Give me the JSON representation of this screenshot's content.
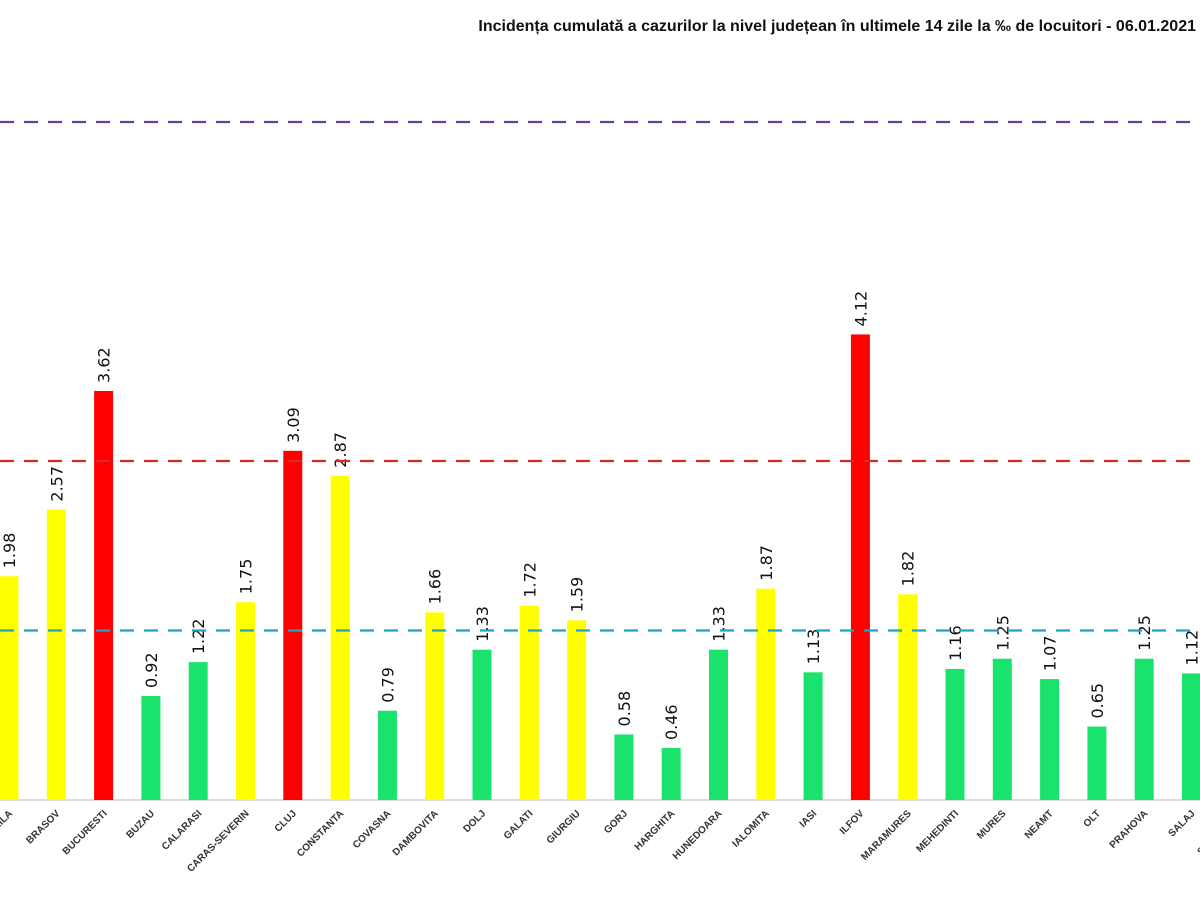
{
  "chart_data": {
    "type": "bar",
    "title": "Incidența cumulată a cazurilor la nivel județean în ultimele 14 zile la ‰ de locuitori - 06.01.2021",
    "xlabel": "",
    "ylabel": "",
    "ylim": [
      0,
      6.2
    ],
    "grid": false,
    "categories": [
      "BRAILA",
      "BRASOV",
      "BUCURESTI",
      "BUZAU",
      "CALARASI",
      "CARAS-SEVERIN",
      "CLUJ",
      "CONSTANTA",
      "COVASNA",
      "DAMBOVITA",
      "DOLJ",
      "GALATI",
      "GIURGIU",
      "GORJ",
      "HARGHITA",
      "HUNEDOARA",
      "IALOMITA",
      "IASI",
      "ILFOV",
      "MARAMURES",
      "MEHEDINTI",
      "MURES",
      "NEAMT",
      "OLT",
      "PRAHOVA",
      "SALAJ",
      "SATU MARE"
    ],
    "values": [
      1.98,
      2.57,
      3.62,
      0.92,
      1.22,
      1.75,
      3.09,
      2.87,
      0.79,
      1.66,
      1.33,
      1.72,
      1.59,
      0.58,
      0.46,
      1.33,
      1.87,
      1.13,
      4.12,
      1.82,
      1.16,
      1.25,
      1.07,
      0.65,
      1.25,
      1.12,
      null
    ],
    "thresholds": [
      {
        "value": 1.5,
        "color": "#1aa7c4"
      },
      {
        "value": 3.0,
        "color": "#d62a2a"
      },
      {
        "value": 6.0,
        "color": "#6a3d9a"
      }
    ],
    "bar_colors": {
      "below_1.5": "#19e36c",
      "1.5_to_3": "#ffff00",
      "above_3": "#ff0000"
    }
  }
}
